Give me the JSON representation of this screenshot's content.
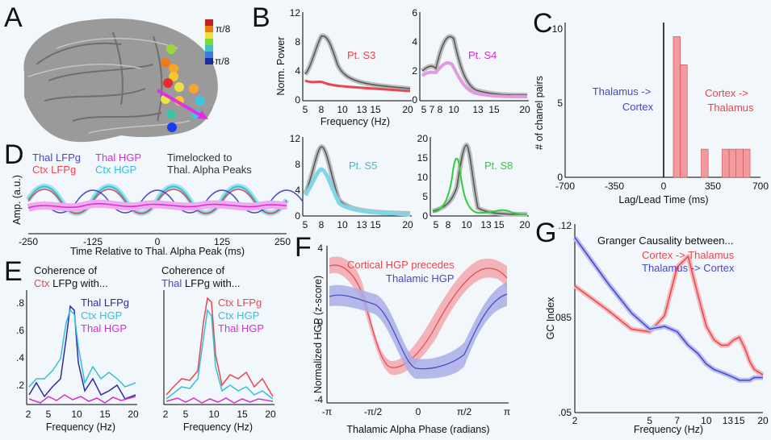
{
  "panels": {
    "A": {
      "label": "A",
      "colorbar": {
        "top": "π/8",
        "bottom": "-π/8"
      }
    },
    "B": {
      "label": "B",
      "subplots": [
        {
          "title": "Pt. S3",
          "color": "#e8474e",
          "yticks": [
            "12",
            "8",
            "4",
            "0"
          ],
          "ylabel": "Norm. Power",
          "xlabel": "Frequency (Hz)"
        },
        {
          "title": "Pt. S4",
          "color": "#d62fd0",
          "yticks": [
            "6",
            "4",
            "2",
            "0"
          ]
        },
        {
          "title": "Pt. S5",
          "color": "#35c0d8",
          "yticks": [
            "12",
            "8",
            "4",
            "0"
          ]
        },
        {
          "title": "Pt. S8",
          "color": "#2fcf3a",
          "yticks": [
            "20",
            "15",
            "10",
            "5",
            "0"
          ]
        }
      ],
      "xticks": [
        "5",
        "7",
        "8",
        "10",
        "13",
        "15",
        "20"
      ],
      "xticks_s4": [
        "5",
        "7",
        "8",
        "10",
        "13",
        "15",
        "20"
      ]
    },
    "C": {
      "label": "C",
      "ylabel": "# of chanel pairs",
      "xlabel": "Lag/Lead Time (ms)",
      "xticks": [
        "-700",
        "-350",
        "0",
        "350",
        "700"
      ],
      "yticks": [
        "10",
        "5",
        "0"
      ],
      "left_text": [
        "Thalamus ->",
        "Cortex"
      ],
      "right_text": [
        "Cortex ->",
        "Thalamus"
      ]
    },
    "D": {
      "label": "D",
      "legend": {
        "thal_lfpg": "Thal LFPg",
        "thal_hgp": "Thal HGP",
        "ctx_lfpg": "Ctx LFPg",
        "ctx_hgp": "Ctx HGP"
      },
      "note": [
        "Timelocked to",
        "Thal. Alpha Peaks"
      ],
      "ylabel": "Amp. (a.u.)",
      "xlabel": "Time Relative to Thal. Alpha Peak (ms)",
      "xticks": [
        "-250",
        "-125",
        "0",
        "125",
        "250"
      ]
    },
    "E": {
      "label": "E",
      "left": {
        "title_pre": "Coherence of",
        "title_colored": "Ctx",
        "title_post": " LFPg with...",
        "entries": [
          "Thal LFPg",
          "Ctx HGP",
          "Thal HGP"
        ],
        "colors": [
          "#2b2ba8",
          "#35c0d8",
          "#d62fd0"
        ]
      },
      "right": {
        "title_pre": "Coherence of",
        "title_colored": "Thal",
        "title_post": " LFPg with...",
        "entries": [
          "Ctx LFPg",
          "Ctx HGP",
          "Thal HGP"
        ],
        "colors": [
          "#e8474e",
          "#35c0d8",
          "#d62fd0"
        ]
      },
      "yticks": [
        ".8",
        ".6",
        ".4",
        ".2"
      ],
      "xticks": [
        "2",
        "5",
        "10",
        "15",
        "20"
      ],
      "xlabel": "Frequency (Hz)"
    },
    "F": {
      "label": "F",
      "legend": {
        "ctx": "Cortical HGP precedes",
        "thal": "Thalamic HGP"
      },
      "ylabel": "Normalized HGP (z-score)",
      "xlabel": "Thalamic Alpha Phase (radians)",
      "yticks": [
        "4",
        "0",
        "-4"
      ],
      "xticks": [
        "-π",
        "-π/2",
        "0",
        "π/2",
        "π"
      ]
    },
    "G": {
      "label": "G",
      "title": "Granger Causality between...",
      "legend": {
        "ctx": "Cortex -> Thalamus",
        "thal": "Thalamus -> Cortex"
      },
      "ylabel": "GC Index",
      "xlabel": "Frequency (Hz)",
      "yticks": [
        ".12",
        ".085",
        ".05"
      ],
      "xticks": [
        "2",
        "5",
        "7",
        "10",
        "13",
        "15",
        "20"
      ]
    }
  },
  "colors": {
    "red": "#e8474e",
    "blue": "#4747c8",
    "cyan": "#35c0d8",
    "magenta": "#d62fd0",
    "green": "#2fcf3a",
    "gray": "#555555"
  },
  "chart_data": [
    {
      "type": "bar",
      "panel": "C",
      "xlabel": "Lag/Lead Time (ms)",
      "ylabel": "# of chanel pairs",
      "xlim": [
        -700,
        700
      ],
      "ylim": [
        0,
        11
      ],
      "bins": [
        {
          "x": 100,
          "value": 10
        },
        {
          "x": 150,
          "value": 8
        },
        {
          "x": 300,
          "value": 2
        },
        {
          "x": 450,
          "value": 2
        },
        {
          "x": 500,
          "value": 2
        },
        {
          "x": 550,
          "value": 2
        },
        {
          "x": 600,
          "value": 2
        }
      ]
    },
    {
      "type": "line",
      "panel": "G",
      "xlabel": "Frequency (Hz)",
      "ylabel": "GC Index",
      "xlim": [
        2,
        20
      ],
      "ylim": [
        0.05,
        0.12
      ],
      "x": [
        2,
        3,
        4,
        5,
        6,
        7,
        8,
        9,
        10,
        11,
        12,
        13,
        14,
        15,
        16,
        17,
        18,
        19,
        20
      ],
      "series": [
        {
          "name": "Cortex -> Thalamus",
          "values": [
            0.097,
            0.088,
            0.081,
            0.08,
            0.086,
            0.104,
            0.108,
            0.094,
            0.082,
            0.077,
            0.075,
            0.075,
            0.077,
            0.078,
            0.074,
            0.069,
            0.066,
            0.065,
            0.064
          ]
        },
        {
          "name": "Thalamus -> Cortex",
          "values": [
            0.115,
            0.098,
            0.087,
            0.081,
            0.082,
            0.08,
            0.075,
            0.072,
            0.068,
            0.066,
            0.065,
            0.064,
            0.063,
            0.062,
            0.062,
            0.062,
            0.063,
            0.063,
            0.063
          ]
        }
      ]
    }
  ]
}
